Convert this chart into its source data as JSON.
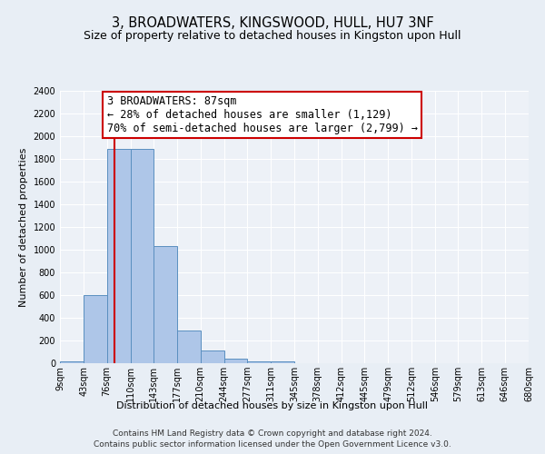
{
  "title": "3, BROADWATERS, KINGSWOOD, HULL, HU7 3NF",
  "subtitle": "Size of property relative to detached houses in Kingston upon Hull",
  "xlabel": "Distribution of detached houses by size in Kingston upon Hull",
  "ylabel": "Number of detached properties",
  "footer_line1": "Contains HM Land Registry data © Crown copyright and database right 2024.",
  "footer_line2": "Contains public sector information licensed under the Open Government Licence v3.0.",
  "bar_edges": [
    9,
    43,
    76,
    110,
    143,
    177,
    210,
    244,
    277,
    311,
    345,
    378,
    412,
    445,
    479,
    512,
    546,
    579,
    613,
    646,
    680
  ],
  "bar_values": [
    15,
    600,
    1890,
    1890,
    1030,
    290,
    115,
    40,
    20,
    15,
    0,
    0,
    0,
    0,
    0,
    0,
    0,
    0,
    0,
    0
  ],
  "bar_color": "#aec6e8",
  "bar_edge_color": "#5a8fc0",
  "property_size": 87,
  "property_line_color": "#cc0000",
  "annotation_text": "3 BROADWATERS: 87sqm\n← 28% of detached houses are smaller (1,129)\n70% of semi-detached houses are larger (2,799) →",
  "annotation_box_color": "#ffffff",
  "annotation_box_edge_color": "#cc0000",
  "ylim": [
    0,
    2400
  ],
  "yticks": [
    0,
    200,
    400,
    600,
    800,
    1000,
    1200,
    1400,
    1600,
    1800,
    2000,
    2200,
    2400
  ],
  "bg_color": "#e8eef5",
  "plot_bg_color": "#edf1f7",
  "title_fontsize": 10.5,
  "subtitle_fontsize": 9,
  "axis_label_fontsize": 8,
  "tick_fontsize": 7,
  "annotation_fontsize": 8.5,
  "footer_fontsize": 6.5
}
